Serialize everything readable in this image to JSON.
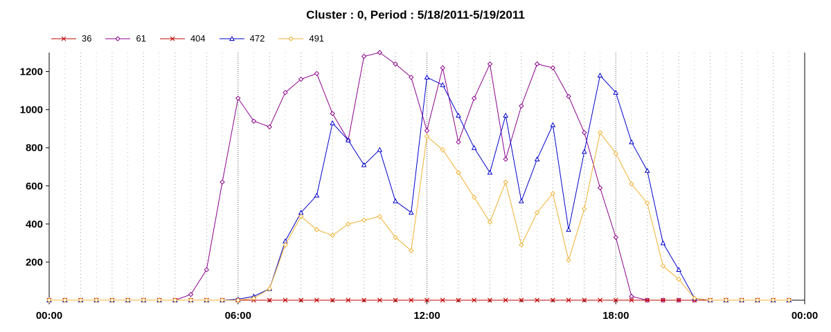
{
  "chart_data": {
    "type": "line",
    "title": "Cluster : 0, Period : 5/18/2011-5/19/2011",
    "xlabel": "",
    "ylabel": "",
    "x_tick_labels": [
      "00:00",
      "06:00",
      "12:00",
      "18:00",
      "00:00"
    ],
    "x_tick_hours": [
      0,
      6,
      12,
      18,
      24
    ],
    "xlim": [
      0,
      24
    ],
    "ylim": [
      0,
      1300
    ],
    "y_ticks": [
      200,
      400,
      600,
      800,
      1000,
      1200
    ],
    "grid": true,
    "legend_position": "top-left",
    "x": [
      0,
      0.5,
      1,
      1.5,
      2,
      2.5,
      3,
      3.5,
      4,
      4.5,
      5,
      5.5,
      6,
      6.5,
      7,
      7.5,
      8,
      8.5,
      9,
      9.5,
      10,
      10.5,
      11,
      11.5,
      12,
      12.5,
      13,
      13.5,
      14,
      14.5,
      15,
      15.5,
      16,
      16.5,
      17,
      17.5,
      18,
      18.5,
      19,
      19.5,
      20,
      20.5,
      21,
      21.5,
      22,
      22.5,
      23,
      23.5
    ],
    "series": [
      {
        "name": "36",
        "color": "#c00000",
        "marker": "x",
        "values": [
          0,
          0,
          0,
          0,
          0,
          0,
          0,
          0,
          0,
          0,
          0,
          0,
          0,
          0,
          0,
          0,
          0,
          0,
          0,
          0,
          0,
          0,
          0,
          0,
          0,
          0,
          0,
          0,
          0,
          0,
          0,
          0,
          0,
          0,
          0,
          0,
          0,
          0,
          0,
          0,
          0,
          0,
          0,
          0,
          0,
          0,
          0,
          0
        ]
      },
      {
        "name": "61",
        "color": "#8b008b",
        "marker": "diamond",
        "values": [
          0,
          0,
          0,
          0,
          0,
          0,
          0,
          0,
          0,
          30,
          160,
          620,
          1060,
          940,
          910,
          1090,
          1160,
          1190,
          980,
          840,
          1280,
          1300,
          1240,
          1170,
          890,
          1220,
          830,
          1060,
          1240,
          740,
          1020,
          1240,
          1220,
          1070,
          880,
          590,
          330,
          20,
          0,
          0,
          0,
          0,
          0,
          0,
          0,
          0,
          0,
          0
        ]
      },
      {
        "name": "404",
        "color": "#c00000",
        "marker": "x",
        "values": [
          0,
          0,
          0,
          0,
          0,
          0,
          0,
          0,
          0,
          0,
          0,
          0,
          0,
          0,
          0,
          0,
          0,
          0,
          0,
          0,
          0,
          0,
          0,
          0,
          0,
          0,
          0,
          0,
          0,
          0,
          0,
          0,
          0,
          0,
          0,
          0,
          0,
          0,
          0,
          0,
          0,
          0,
          0,
          0,
          0,
          0,
          0,
          0
        ]
      },
      {
        "name": "472",
        "color": "#0000cc",
        "marker": "triangle",
        "values": [
          0,
          0,
          0,
          0,
          0,
          0,
          0,
          0,
          0,
          0,
          0,
          0,
          5,
          20,
          60,
          310,
          460,
          550,
          930,
          840,
          710,
          790,
          520,
          460,
          1170,
          1130,
          970,
          800,
          670,
          970,
          520,
          740,
          920,
          370,
          780,
          1180,
          1090,
          830,
          680,
          300,
          160,
          10,
          0,
          0,
          0,
          0,
          0,
          0
        ]
      },
      {
        "name": "491",
        "color": "#f0b030",
        "marker": "diamond",
        "values": [
          0,
          0,
          0,
          0,
          0,
          0,
          0,
          0,
          0,
          0,
          0,
          0,
          0,
          10,
          60,
          290,
          440,
          370,
          340,
          400,
          420,
          440,
          330,
          260,
          860,
          790,
          670,
          540,
          410,
          620,
          290,
          460,
          560,
          210,
          480,
          880,
          770,
          610,
          510,
          180,
          110,
          10,
          0,
          0,
          0,
          0,
          0,
          0
        ]
      }
    ]
  }
}
